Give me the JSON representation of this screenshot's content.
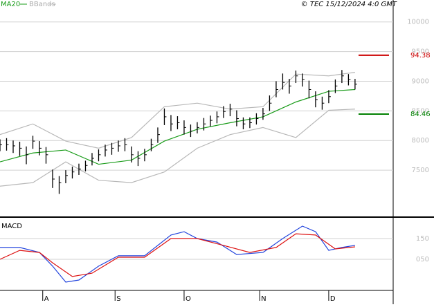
{
  "chart_data": [
    {
      "type": "ohlc",
      "legend": [
        "MA20",
        "BBands"
      ],
      "source": "© TEC 15/12/2024 4:0 GMT",
      "xlim": [
        0,
        119.6
      ],
      "ylim": [
        67.2,
        102.3
      ],
      "yticks": [
        {
          "value": 100,
          "label": "10000"
        },
        {
          "value": 95,
          "label": "9500"
        },
        {
          "value": 90,
          "label": "9000"
        },
        {
          "value": 85,
          "label": "8500"
        },
        {
          "value": 80,
          "label": "8000"
        },
        {
          "value": 75,
          "label": "7500"
        }
      ],
      "grid": true,
      "bar_color": "#000000",
      "x": [
        0,
        2,
        4,
        6,
        8,
        10,
        12,
        14,
        16,
        18,
        20,
        22,
        24,
        26,
        28,
        30,
        32,
        34,
        36,
        38,
        40,
        42,
        44,
        46,
        48,
        50,
        52,
        54,
        56,
        58,
        60,
        62,
        64,
        66,
        68,
        70,
        72,
        74,
        76,
        78,
        80,
        82,
        84,
        86,
        88,
        90,
        92,
        94,
        96,
        98,
        100,
        102,
        104,
        106,
        108
      ],
      "close": [
        79.3,
        79.3,
        79.1,
        78.7,
        77.6,
        79.9,
        78.7,
        77.6,
        73.5,
        72.9,
        74.1,
        74.7,
        75.2,
        75.8,
        77.0,
        77.6,
        78.4,
        78.7,
        79.1,
        79.3,
        77.6,
        77.0,
        77.6,
        79.3,
        81.0,
        84.0,
        82.8,
        83.0,
        82.2,
        81.6,
        82.2,
        82.8,
        83.4,
        84.0,
        84.9,
        85.3,
        83.7,
        82.8,
        83.0,
        83.7,
        84.5,
        86.3,
        88.6,
        89.8,
        89.2,
        90.9,
        90.3,
        88.6,
        86.9,
        86.3,
        87.4,
        89.2,
        90.9,
        90.3,
        89.5
      ],
      "high": [
        80.2,
        80.4,
        80.0,
        79.8,
        79.0,
        80.8,
        79.9,
        78.9,
        75.1,
        74.0,
        75.0,
        75.6,
        76.1,
        76.6,
        77.9,
        78.5,
        79.3,
        79.6,
        80.0,
        80.4,
        79.0,
        78.2,
        78.6,
        80.3,
        82.2,
        85.4,
        84.3,
        84.1,
        83.4,
        82.7,
        83.1,
        83.8,
        84.2,
        84.9,
        85.8,
        86.2,
        85.1,
        83.9,
        83.9,
        84.6,
        85.5,
        87.6,
        90.0,
        91.3,
        90.4,
        91.8,
        91.3,
        90.1,
        88.3,
        87.4,
        88.5,
        90.3,
        91.9,
        91.2,
        90.4
      ],
      "low": [
        78.2,
        78.3,
        77.9,
        77.4,
        76.0,
        78.6,
        77.5,
        76.1,
        72.0,
        71.0,
        72.8,
        73.6,
        74.2,
        74.8,
        75.8,
        76.5,
        77.3,
        77.6,
        78.1,
        78.2,
        76.3,
        75.7,
        76.5,
        78.2,
        79.6,
        82.6,
        81.6,
        81.9,
        81.0,
        80.6,
        81.2,
        81.7,
        82.4,
        82.9,
        83.8,
        84.1,
        82.4,
        81.9,
        82.1,
        82.7,
        83.5,
        85.0,
        87.3,
        88.6,
        87.9,
        89.7,
        89.1,
        87.1,
        85.6,
        85.2,
        86.3,
        88.0,
        89.7,
        89.3,
        88.6
      ],
      "series": [
        {
          "name": "MA20",
          "color": "#1a9c1a",
          "x": [
            0,
            10,
            20,
            30,
            40,
            50,
            60,
            70,
            80,
            90,
            100,
            108
          ],
          "values": [
            76.4,
            77.9,
            78.4,
            76.0,
            76.7,
            79.9,
            81.9,
            83.0,
            84.0,
            86.5,
            88.3,
            88.6
          ]
        }
      ],
      "bands": {
        "name": "BBands",
        "color": "#b8b8b8",
        "x": [
          0,
          10,
          20,
          30,
          40,
          50,
          60,
          70,
          80,
          90,
          100,
          108
        ],
        "upper": [
          81.0,
          82.8,
          79.9,
          78.7,
          80.5,
          85.7,
          86.3,
          85.3,
          85.7,
          91.2,
          90.9,
          91.5
        ],
        "lower": [
          72.3,
          72.9,
          76.4,
          73.3,
          72.9,
          74.7,
          78.7,
          81.0,
          82.2,
          80.5,
          85.1,
          85.3
        ]
      },
      "levels": [
        {
          "value": 94.38,
          "label": "94.38",
          "color": "#cc0000"
        },
        {
          "value": 84.46,
          "label": "84.46",
          "color": "#008000"
        }
      ]
    },
    {
      "type": "line",
      "title": "MACD",
      "xlim": [
        0,
        119.6
      ],
      "ylim": [
        -1.0,
        2.4
      ],
      "yticks": [
        {
          "value": 1.5,
          "label": "150"
        },
        {
          "value": 0.5,
          "label": "050"
        }
      ],
      "grid": true,
      "xticks": [
        {
          "value": 13,
          "label": "A"
        },
        {
          "value": 35,
          "label": "S"
        },
        {
          "value": 56,
          "label": "O"
        },
        {
          "value": 79,
          "label": "N"
        },
        {
          "value": 100,
          "label": "D"
        }
      ],
      "series": [
        {
          "color": "#2244dd",
          "x": [
            0,
            6,
            12,
            16,
            20,
            24,
            30,
            36,
            44,
            52,
            56,
            60,
            66,
            72,
            80,
            86,
            92,
            96,
            100,
            104,
            108
          ],
          "values": [
            1.07,
            1.07,
            0.83,
            0.17,
            -0.6,
            -0.5,
            0.17,
            0.67,
            0.67,
            1.67,
            1.83,
            1.5,
            1.33,
            0.73,
            0.83,
            1.5,
            2.1,
            1.83,
            0.93,
            1.07,
            1.17
          ]
        },
        {
          "color": "#dd1111",
          "x": [
            0,
            6,
            12,
            16,
            22,
            28,
            36,
            44,
            52,
            60,
            68,
            76,
            84,
            90,
            96,
            102,
            108
          ],
          "values": [
            0.5,
            0.93,
            0.83,
            0.33,
            -0.33,
            -0.17,
            0.6,
            0.6,
            1.5,
            1.5,
            1.17,
            0.83,
            1.07,
            1.73,
            1.67,
            1.0,
            1.1
          ]
        }
      ]
    }
  ]
}
